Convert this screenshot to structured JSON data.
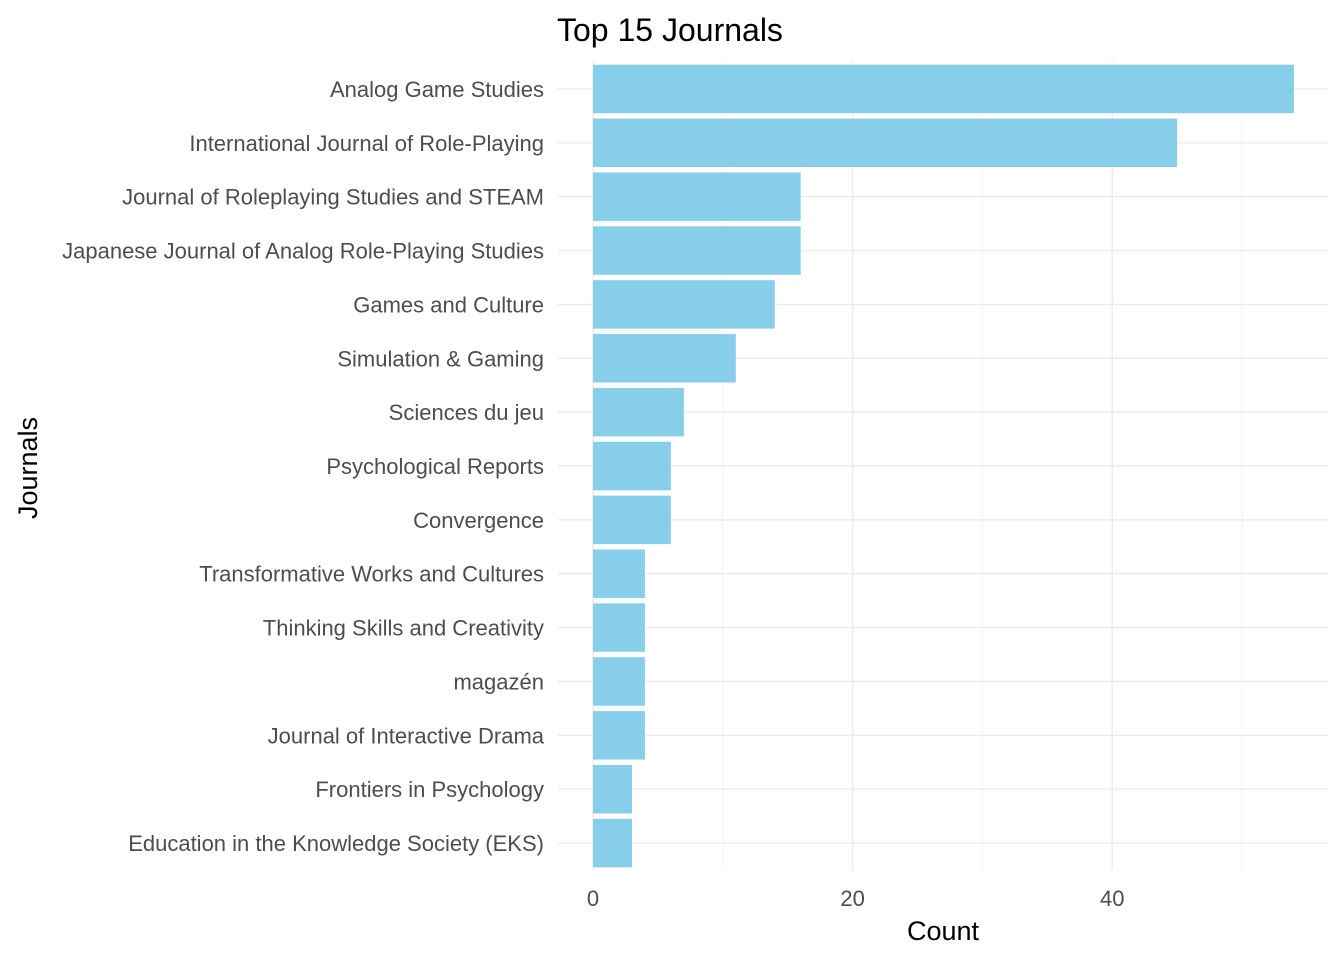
{
  "chart_data": {
    "type": "bar",
    "orientation": "horizontal",
    "title": "Top 15 Journals",
    "xlabel": "Count",
    "ylabel": "Journals",
    "categories": [
      "Analog Game Studies",
      "International Journal of Role-Playing",
      "Journal of Roleplaying Studies and STEAM",
      "Japanese Journal of Analog Role-Playing Studies",
      "Games and Culture",
      "Simulation & Gaming",
      "Sciences du jeu",
      "Psychological Reports",
      "Convergence",
      "Transformative Works and Cultures",
      "Thinking Skills and Creativity",
      "magazén",
      "Journal of Interactive Drama",
      "Frontiers in Psychology",
      "Education in the Knowledge Society (EKS)"
    ],
    "values": [
      54,
      45,
      16,
      16,
      14,
      11,
      7,
      6,
      6,
      4,
      4,
      4,
      4,
      3,
      3
    ],
    "xlim": [
      0,
      56
    ],
    "xticks": [
      0,
      20,
      40
    ],
    "xtick_labels": [
      "0",
      "20",
      "40"
    ],
    "bar_color": "#87CEEB",
    "grid": true,
    "legend": "none"
  }
}
